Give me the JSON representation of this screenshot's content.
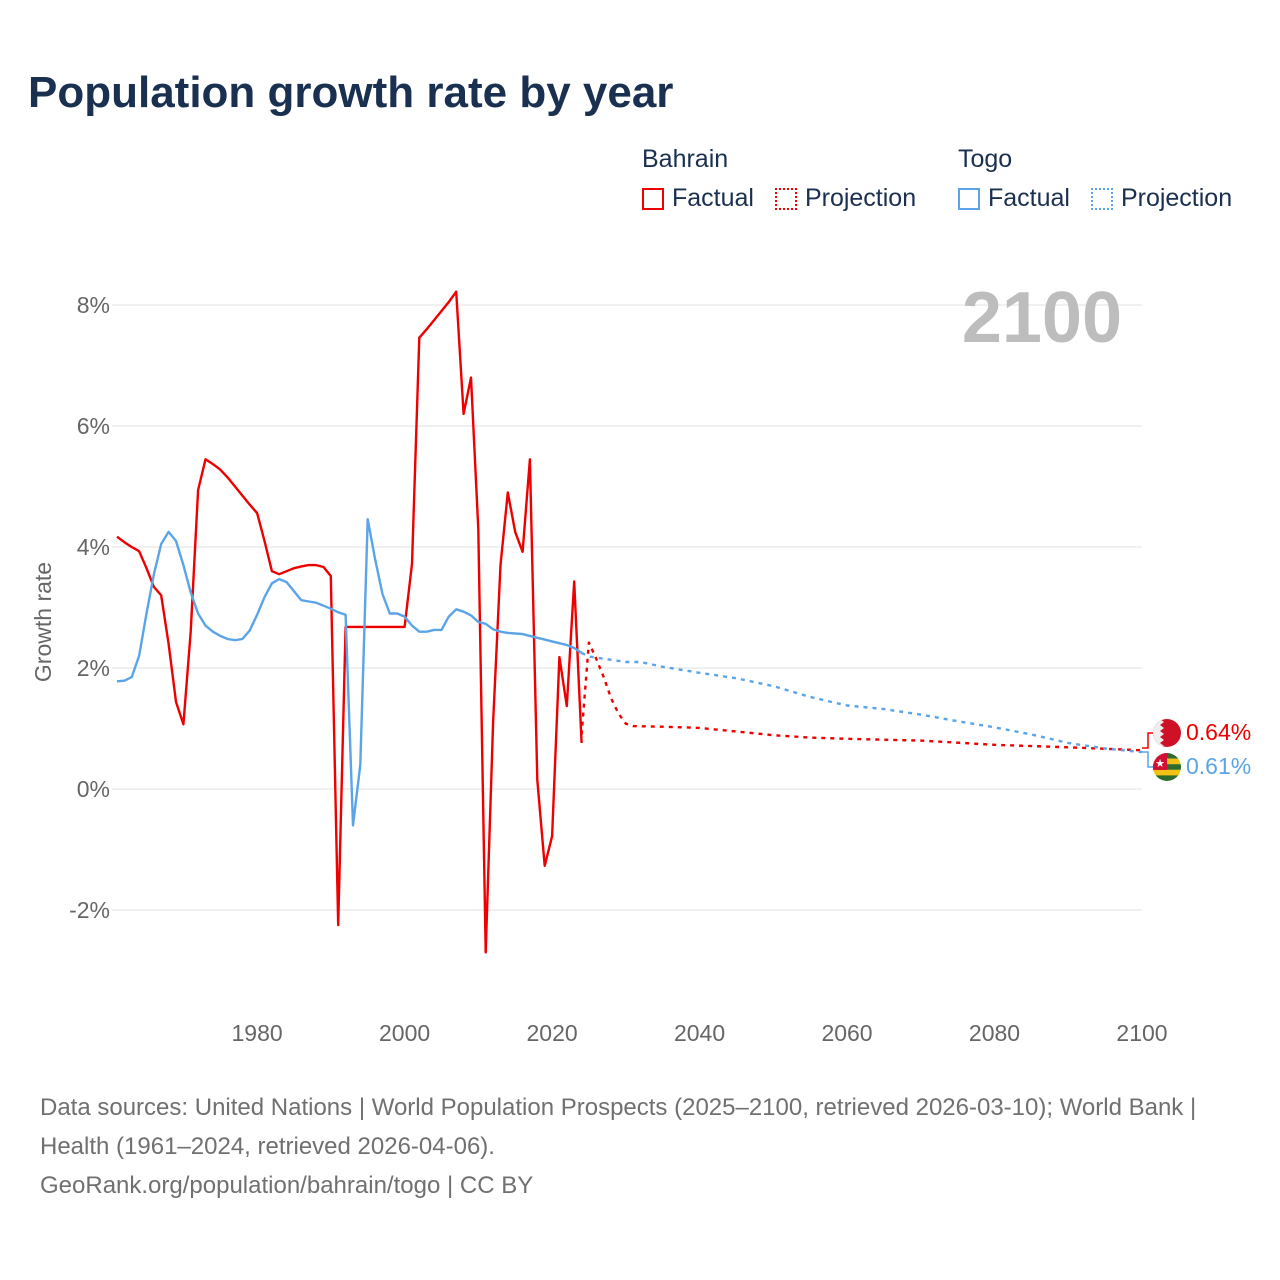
{
  "title": "Population growth rate by year",
  "legend": {
    "groups": [
      {
        "name": "Bahrain",
        "factual": "Factual",
        "projection": "Projection",
        "color": "#ee0000"
      },
      {
        "name": "Togo",
        "factual": "Factual",
        "projection": "Projection",
        "color": "#5ba4e8"
      }
    ]
  },
  "chart_data": {
    "type": "line",
    "title": "Population growth rate by year",
    "xlabel": "",
    "ylabel": "Growth rate",
    "xlim": [
      1961,
      2100
    ],
    "ylim": [
      -3.5,
      8.75
    ],
    "x_ticks": [
      1980,
      2000,
      2020,
      2040,
      2060,
      2080,
      2100
    ],
    "y_ticks": [
      -2,
      0,
      2,
      4,
      6,
      8
    ],
    "y_tick_labels": [
      "-2%",
      "0%",
      "2%",
      "4%",
      "6%",
      "8%"
    ],
    "grid": true,
    "year_label": "2100",
    "series": [
      {
        "name": "Bahrain",
        "kind": "Factual",
        "color": "#ee0000",
        "x": [
          1961,
          1962,
          1963,
          1964,
          1965,
          1966,
          1967,
          1968,
          1969,
          1970,
          1971,
          1972,
          1973,
          1974,
          1975,
          1976,
          1977,
          1978,
          1979,
          1980,
          1981,
          1982,
          1983,
          1984,
          1985,
          1986,
          1987,
          1988,
          1989,
          1990,
          1991,
          1992,
          1993,
          1994,
          1995,
          1996,
          1997,
          1998,
          1999,
          2000,
          2001,
          2002,
          2003,
          2004,
          2005,
          2006,
          2007,
          2008,
          2009,
          2010,
          2011,
          2012,
          2013,
          2014,
          2015,
          2016,
          2017,
          2018,
          2019,
          2020,
          2021,
          2022,
          2023,
          2024
        ],
        "y": [
          4.17,
          4.08,
          4.0,
          3.93,
          3.65,
          3.34,
          3.2,
          2.4,
          1.44,
          1.07,
          2.6,
          4.94,
          5.45,
          5.37,
          5.28,
          5.15,
          5.0,
          4.85,
          4.7,
          4.56,
          4.1,
          3.6,
          3.55,
          3.6,
          3.65,
          3.68,
          3.7,
          3.7,
          3.67,
          3.52,
          -2.25,
          2.68,
          2.68,
          2.68,
          2.68,
          2.68,
          2.68,
          2.68,
          2.68,
          2.68,
          3.72,
          7.46,
          7.6,
          7.75,
          7.9,
          8.05,
          8.22,
          6.2,
          6.8,
          4.3,
          -2.7,
          1.1,
          3.7,
          4.9,
          4.25,
          3.92,
          5.45,
          0.15,
          -1.27,
          -0.78,
          2.18,
          1.37,
          3.43,
          0.76
        ]
      },
      {
        "name": "Bahrain",
        "kind": "Projection",
        "color": "#ee0000",
        "x": [
          2024,
          2025,
          2026,
          2027,
          2028,
          2029,
          2030,
          2031,
          2035,
          2040,
          2045,
          2050,
          2055,
          2060,
          2070,
          2080,
          2090,
          2100
        ],
        "y": [
          0.9,
          2.42,
          2.15,
          1.85,
          1.5,
          1.25,
          1.08,
          1.04,
          1.03,
          1.01,
          0.95,
          0.89,
          0.85,
          0.83,
          0.8,
          0.73,
          0.69,
          0.64
        ]
      },
      {
        "name": "Togo",
        "kind": "Factual",
        "color": "#5ba4e8",
        "x": [
          1961,
          1962,
          1963,
          1964,
          1965,
          1966,
          1967,
          1968,
          1969,
          1970,
          1971,
          1972,
          1973,
          1974,
          1975,
          1976,
          1977,
          1978,
          1979,
          1980,
          1981,
          1982,
          1983,
          1984,
          1985,
          1986,
          1987,
          1988,
          1989,
          1990,
          1991,
          1992,
          1993,
          1994,
          1995,
          1996,
          1997,
          1998,
          1999,
          2000,
          2001,
          2002,
          2003,
          2004,
          2005,
          2006,
          2007,
          2008,
          2009,
          2010,
          2011,
          2012,
          2013,
          2014,
          2015,
          2016,
          2017,
          2018,
          2019,
          2020,
          2021,
          2022,
          2023,
          2024
        ],
        "y": [
          1.78,
          1.79,
          1.85,
          2.2,
          2.9,
          3.55,
          4.05,
          4.25,
          4.1,
          3.7,
          3.25,
          2.9,
          2.7,
          2.6,
          2.53,
          2.48,
          2.46,
          2.48,
          2.62,
          2.88,
          3.17,
          3.4,
          3.47,
          3.42,
          3.27,
          3.12,
          3.1,
          3.08,
          3.03,
          2.98,
          2.92,
          2.88,
          -0.6,
          0.4,
          4.46,
          3.8,
          3.22,
          2.9,
          2.9,
          2.85,
          2.7,
          2.6,
          2.6,
          2.63,
          2.63,
          2.85,
          2.97,
          2.93,
          2.87,
          2.76,
          2.73,
          2.64,
          2.6,
          2.58,
          2.57,
          2.56,
          2.53,
          2.5,
          2.47,
          2.44,
          2.41,
          2.38,
          2.33,
          2.25
        ]
      },
      {
        "name": "Togo",
        "kind": "Projection",
        "color": "#5ba4e8",
        "x": [
          2024,
          2025,
          2030,
          2032,
          2035,
          2040,
          2045,
          2050,
          2055,
          2060,
          2065,
          2070,
          2075,
          2080,
          2085,
          2090,
          2095,
          2100
        ],
        "y": [
          2.25,
          2.19,
          2.1,
          2.1,
          2.02,
          1.92,
          1.83,
          1.7,
          1.52,
          1.38,
          1.32,
          1.23,
          1.12,
          1.02,
          0.9,
          0.76,
          0.67,
          0.61
        ]
      }
    ],
    "end_labels": [
      {
        "name": "Bahrain",
        "value": "0.64%",
        "color": "#ee0000"
      },
      {
        "name": "Togo",
        "value": "0.61%",
        "color": "#5ba4e8"
      }
    ]
  },
  "footer": {
    "sources": "Data sources: United Nations | World Population Prospects (2025–2100, retrieved 2026-03-10); World Bank | Health (1961–2024, retrieved 2026-04-06).",
    "credit": "GeoRank.org/population/bahrain/togo | CC BY"
  }
}
